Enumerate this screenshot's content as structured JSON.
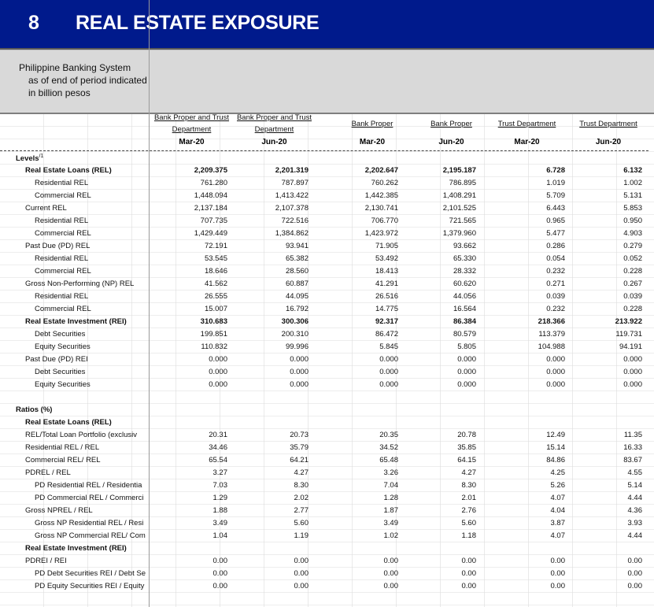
{
  "title": {
    "number": "8",
    "text": "REAL ESTATE EXPOSURE"
  },
  "subheader": [
    "Philippine Banking System",
    "as of end of period indicated",
    "in billion pesos"
  ],
  "columns": [
    {
      "h1": "Bank Proper and Trust",
      "h2": "Department",
      "period": "Mar-20"
    },
    {
      "h1": "Bank Proper and Trust",
      "h2": "Department",
      "period": "Jun-20"
    },
    {
      "h1": "Bank Proper",
      "h2": "",
      "period": "Mar-20"
    },
    {
      "h1": "Bank Proper",
      "h2": "",
      "period": "Jun-20"
    },
    {
      "h1": "Trust Department",
      "h2": "",
      "period": "Mar-20"
    },
    {
      "h1": "Trust Department",
      "h2": "",
      "period": "Jun-20"
    }
  ],
  "levels_header": "Levels",
  "levels_footnote": "/1",
  "ratios_header": "Ratios (%)",
  "levels_rows": [
    {
      "label": "Real Estate Loans (REL)",
      "indent": 1,
      "bold": true,
      "values": [
        "2,209.375",
        "2,201.319",
        "2,202.647",
        "2,195.187",
        "6.728",
        "6.132"
      ]
    },
    {
      "label": "Residential REL",
      "indent": 2,
      "bold": false,
      "values": [
        "761.280",
        "787.897",
        "760.262",
        "786.895",
        "1.019",
        "1.002"
      ]
    },
    {
      "label": "Commercial REL",
      "indent": 2,
      "bold": false,
      "values": [
        "1,448.094",
        "1,413.422",
        "1,442.385",
        "1,408.291",
        "5.709",
        "5.131"
      ]
    },
    {
      "label": "Current REL",
      "indent": 1,
      "bold": false,
      "values": [
        "2,137.184",
        "2,107.378",
        "2,130.741",
        "2,101.525",
        "6.443",
        "5.853"
      ]
    },
    {
      "label": "Residential REL",
      "indent": 2,
      "bold": false,
      "values": [
        "707.735",
        "722.516",
        "706.770",
        "721.565",
        "0.965",
        "0.950"
      ]
    },
    {
      "label": "Commercial REL",
      "indent": 2,
      "bold": false,
      "values": [
        "1,429.449",
        "1,384.862",
        "1,423.972",
        "1,379.960",
        "5.477",
        "4.903"
      ]
    },
    {
      "label": "Past Due (PD) REL",
      "indent": 1,
      "bold": false,
      "values": [
        "72.191",
        "93.941",
        "71.905",
        "93.662",
        "0.286",
        "0.279"
      ]
    },
    {
      "label": "Residential REL",
      "indent": 2,
      "bold": false,
      "values": [
        "53.545",
        "65.382",
        "53.492",
        "65.330",
        "0.054",
        "0.052"
      ]
    },
    {
      "label": "Commercial REL",
      "indent": 2,
      "bold": false,
      "values": [
        "18.646",
        "28.560",
        "18.413",
        "28.332",
        "0.232",
        "0.228"
      ]
    },
    {
      "label": "Gross Non-Performing (NP) REL",
      "indent": 1,
      "bold": false,
      "values": [
        "41.562",
        "60.887",
        "41.291",
        "60.620",
        "0.271",
        "0.267"
      ]
    },
    {
      "label": "Residential REL",
      "indent": 2,
      "bold": false,
      "values": [
        "26.555",
        "44.095",
        "26.516",
        "44.056",
        "0.039",
        "0.039"
      ]
    },
    {
      "label": "Commercial REL",
      "indent": 2,
      "bold": false,
      "values": [
        "15.007",
        "16.792",
        "14.775",
        "16.564",
        "0.232",
        "0.228"
      ]
    },
    {
      "label": "Real Estate Investment (REI)",
      "indent": 1,
      "bold": true,
      "values": [
        "310.683",
        "300.306",
        "92.317",
        "86.384",
        "218.366",
        "213.922"
      ]
    },
    {
      "label": "Debt Securities",
      "indent": 2,
      "bold": false,
      "values": [
        "199.851",
        "200.310",
        "86.472",
        "80.579",
        "113.379",
        "119.731"
      ]
    },
    {
      "label": "Equity Securities",
      "indent": 2,
      "bold": false,
      "values": [
        "110.832",
        "99.996",
        "5.845",
        "5.805",
        "104.988",
        "94.191"
      ]
    },
    {
      "label": "Past Due (PD) REI",
      "indent": 1,
      "bold": false,
      "values": [
        "0.000",
        "0.000",
        "0.000",
        "0.000",
        "0.000",
        "0.000"
      ]
    },
    {
      "label": "Debt Securities",
      "indent": 2,
      "bold": false,
      "values": [
        "0.000",
        "0.000",
        "0.000",
        "0.000",
        "0.000",
        "0.000"
      ]
    },
    {
      "label": "Equity Securities",
      "indent": 2,
      "bold": false,
      "values": [
        "0.000",
        "0.000",
        "0.000",
        "0.000",
        "0.000",
        "0.000"
      ]
    }
  ],
  "ratios_rows": [
    {
      "label": "Real Estate Loans (REL)",
      "indent": 1,
      "bold": true,
      "values": [
        "",
        "",
        "",
        "",
        "",
        ""
      ]
    },
    {
      "label": "REL/Total Loan Portfolio (exclusiv",
      "indent": 1,
      "bold": false,
      "values": [
        "20.31",
        "20.73",
        "20.35",
        "20.78",
        "12.49",
        "11.35"
      ]
    },
    {
      "label": "Residential REL / REL",
      "indent": 1,
      "bold": false,
      "values": [
        "34.46",
        "35.79",
        "34.52",
        "35.85",
        "15.14",
        "16.33"
      ]
    },
    {
      "label": "Commercial REL/ REL",
      "indent": 1,
      "bold": false,
      "values": [
        "65.54",
        "64.21",
        "65.48",
        "64.15",
        "84.86",
        "83.67"
      ]
    },
    {
      "label": "PDREL / REL",
      "indent": 1,
      "bold": false,
      "values": [
        "3.27",
        "4.27",
        "3.26",
        "4.27",
        "4.25",
        "4.55"
      ]
    },
    {
      "label": "PD Residential REL / Residentia",
      "indent": 2,
      "bold": false,
      "values": [
        "7.03",
        "8.30",
        "7.04",
        "8.30",
        "5.26",
        "5.14"
      ]
    },
    {
      "label": "PD Commercial REL / Commerci",
      "indent": 2,
      "bold": false,
      "values": [
        "1.29",
        "2.02",
        "1.28",
        "2.01",
        "4.07",
        "4.44"
      ]
    },
    {
      "label": "Gross NPREL / REL",
      "indent": 1,
      "bold": false,
      "values": [
        "1.88",
        "2.77",
        "1.87",
        "2.76",
        "4.04",
        "4.36"
      ]
    },
    {
      "label": "Gross NP Residential REL / Resi",
      "indent": 2,
      "bold": false,
      "values": [
        "3.49",
        "5.60",
        "3.49",
        "5.60",
        "3.87",
        "3.93"
      ]
    },
    {
      "label": "Gross NP Commercial REL/ Com",
      "indent": 2,
      "bold": false,
      "values": [
        "1.04",
        "1.19",
        "1.02",
        "1.18",
        "4.07",
        "4.44"
      ]
    },
    {
      "label": "Real Estate Investment (REI)",
      "indent": 1,
      "bold": true,
      "values": [
        "",
        "",
        "",
        "",
        "",
        ""
      ]
    },
    {
      "label": "PDREI / REI",
      "indent": 1,
      "bold": false,
      "values": [
        "0.00",
        "0.00",
        "0.00",
        "0.00",
        "0.00",
        "0.00"
      ]
    },
    {
      "label": "PD Debt Securities REI / Debt Se",
      "indent": 2,
      "bold": false,
      "values": [
        "0.00",
        "0.00",
        "0.00",
        "0.00",
        "0.00",
        "0.00"
      ]
    },
    {
      "label": "PD Equity Securities REI / Equity",
      "indent": 2,
      "bold": false,
      "values": [
        "0.00",
        "0.00",
        "0.00",
        "0.00",
        "0.00",
        "0.00"
      ]
    }
  ]
}
